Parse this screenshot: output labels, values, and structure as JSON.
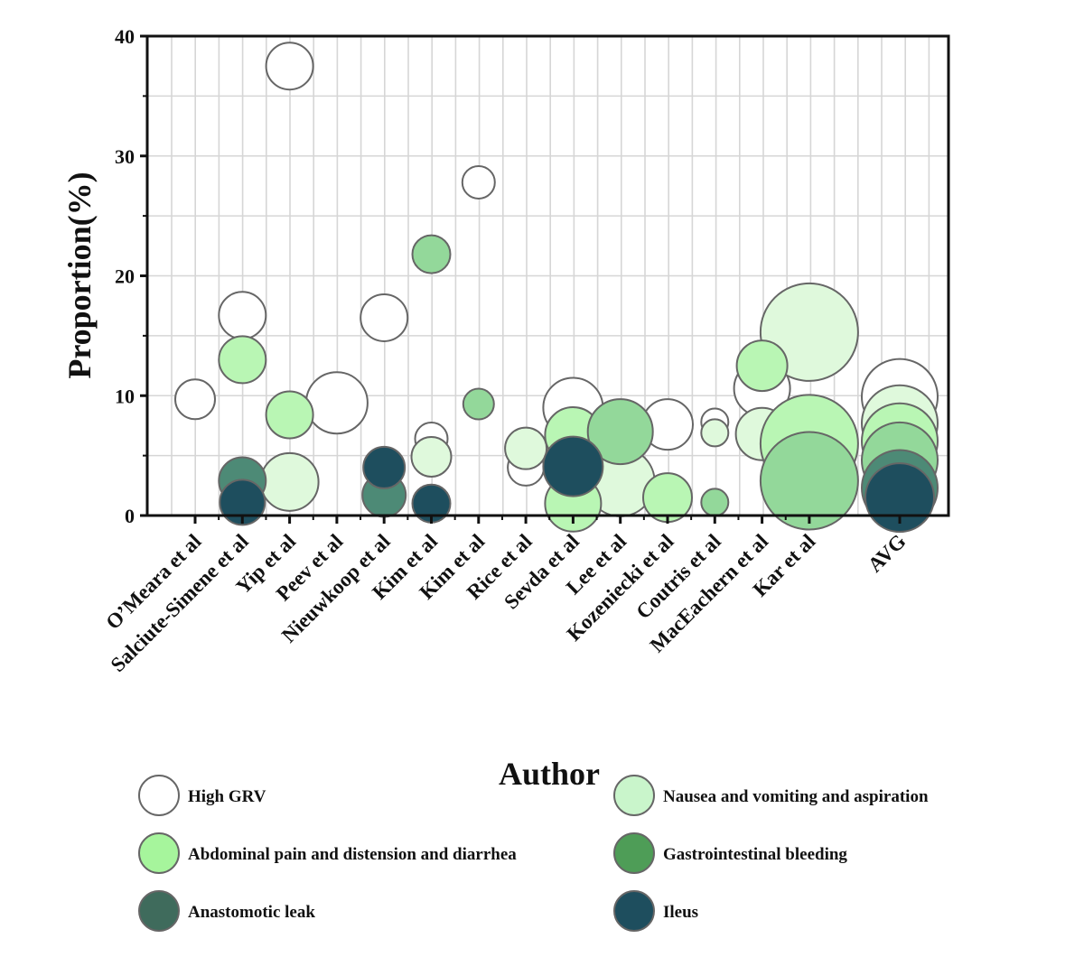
{
  "chart_data": {
    "type": "bubble",
    "xlabel": "Author",
    "ylabel": "Proportion(%)",
    "ylim": [
      0,
      40
    ],
    "yticks": [
      "0",
      "10",
      "20",
      "30",
      "40"
    ],
    "grid": true,
    "categories": [
      "O’Meara et al",
      "Salciute-Simene et al",
      "Yip et al",
      "Peev et al",
      "Nieuwkoop et al",
      "Kim et al",
      "Kim et al",
      "Rice et al",
      "Sevda et al",
      "Lee et al",
      "Kozeniecki et al",
      "Coutris et al",
      "MacEachern et al",
      "Kar et al",
      "AVG"
    ],
    "series": [
      {
        "name": "High GRV",
        "color": "#ffffff",
        "points": [
          {
            "cat": 0,
            "y": 9.7,
            "size": 22
          },
          {
            "cat": 1,
            "y": 16.7,
            "size": 26
          },
          {
            "cat": 2,
            "y": 37.5,
            "size": 26
          },
          {
            "cat": 3,
            "y": 9.4,
            "size": 34
          },
          {
            "cat": 4,
            "y": 16.5,
            "size": 26
          },
          {
            "cat": 5,
            "y": 6.4,
            "size": 18
          },
          {
            "cat": 6,
            "y": 27.8,
            "size": 18
          },
          {
            "cat": 7,
            "y": 4.0,
            "size": 20
          },
          {
            "cat": 8,
            "y": 9.0,
            "size": 33
          },
          {
            "cat": 9,
            "y": 4.2,
            "size": 22
          },
          {
            "cat": 10,
            "y": 7.6,
            "size": 28
          },
          {
            "cat": 11,
            "y": 7.8,
            "size": 15
          },
          {
            "cat": 12,
            "y": 10.6,
            "size": 31
          },
          {
            "cat": 14,
            "y": 9.9,
            "size": 42
          }
        ]
      },
      {
        "name": "Nausea and vomiting and aspiration",
        "color": "#dff9dc",
        "points": [
          {
            "cat": 2,
            "y": 2.8,
            "size": 32
          },
          {
            "cat": 5,
            "y": 4.9,
            "size": 22
          },
          {
            "cat": 7,
            "y": 5.6,
            "size": 23
          },
          {
            "cat": 9,
            "y": 2.8,
            "size": 38
          },
          {
            "cat": 11,
            "y": 6.9,
            "size": 15
          },
          {
            "cat": 12,
            "y": 6.8,
            "size": 29
          },
          {
            "cat": 13,
            "y": 15.3,
            "size": 54
          },
          {
            "cat": 14,
            "y": 7.7,
            "size": 42
          }
        ]
      },
      {
        "name": "Abdominal pain and distension and diarrhea",
        "color": "#b9f6b4",
        "points": [
          {
            "cat": 1,
            "y": 13.0,
            "size": 26
          },
          {
            "cat": 2,
            "y": 8.4,
            "size": 26
          },
          {
            "cat": 8,
            "y": 6.7,
            "size": 31
          },
          {
            "cat": 8,
            "y": 1.0,
            "size": 31
          },
          {
            "cat": 10,
            "y": 1.5,
            "size": 27
          },
          {
            "cat": 12,
            "y": 12.5,
            "size": 28
          },
          {
            "cat": 13,
            "y": 6.0,
            "size": 54
          },
          {
            "cat": 14,
            "y": 6.2,
            "size": 42
          }
        ]
      },
      {
        "name": "Gastrointestinal bleeding",
        "color": "#93d89a",
        "points": [
          {
            "cat": 5,
            "y": 21.8,
            "size": 21
          },
          {
            "cat": 6,
            "y": 9.3,
            "size": 17
          },
          {
            "cat": 9,
            "y": 7.0,
            "size": 36
          },
          {
            "cat": 11,
            "y": 1.1,
            "size": 15
          },
          {
            "cat": 13,
            "y": 2.9,
            "size": 54
          },
          {
            "cat": 14,
            "y": 4.6,
            "size": 42
          }
        ]
      },
      {
        "name": "Anastomotic leak",
        "color": "#4d8a76",
        "points": [
          {
            "cat": 1,
            "y": 2.9,
            "size": 26
          },
          {
            "cat": 4,
            "y": 1.7,
            "size": 24
          },
          {
            "cat": 14,
            "y": 2.3,
            "size": 42
          }
        ]
      },
      {
        "name": "Ileus",
        "color": "#1e4e5e",
        "points": [
          {
            "cat": 1,
            "y": 1.1,
            "size": 25
          },
          {
            "cat": 4,
            "y": 4.0,
            "size": 23
          },
          {
            "cat": 5,
            "y": 1.0,
            "size": 21
          },
          {
            "cat": 8,
            "y": 4.1,
            "size": 33
          },
          {
            "cat": 14,
            "y": 1.5,
            "size": 38
          }
        ]
      }
    ],
    "legend": [
      {
        "label": "High GRV",
        "color": "#ffffff"
      },
      {
        "label": "Nausea and vomiting and aspiration",
        "color": "#c9f5cb"
      },
      {
        "label": "Abdominal pain and distension and diarrhea",
        "color": "#a6f59c"
      },
      {
        "label": "Gastrointestinal bleeding",
        "color": "#4e9d57"
      },
      {
        "label": "Anastomotic leak",
        "color": "#3f6b5c"
      },
      {
        "label": "Ileus",
        "color": "#1e4e5e"
      }
    ]
  }
}
